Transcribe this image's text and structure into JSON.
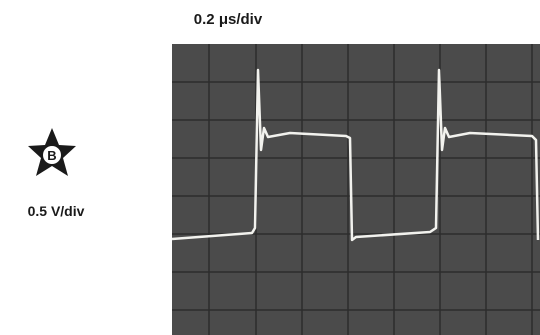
{
  "header": {
    "time_scale": "0.2 μs/div"
  },
  "channel": {
    "label": "B",
    "volts_scale": "0.5 V/div"
  }
}
